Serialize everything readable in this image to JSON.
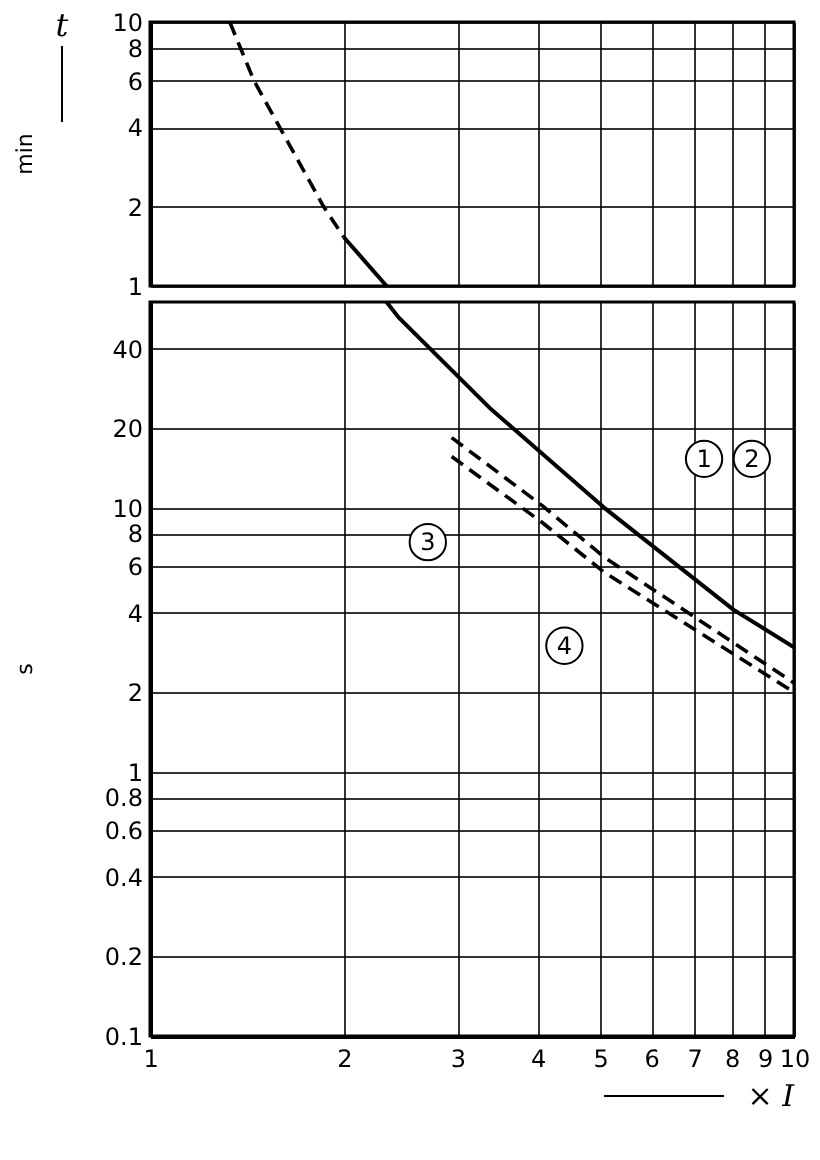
{
  "chart_data": [
    {
      "type": "line",
      "ylabel": "t",
      "log": "xy",
      "grid": true,
      "tick_labels": "y",
      "xlim": [
        1,
        10
      ],
      "xticks": [
        1,
        2,
        3,
        4,
        5,
        6,
        7,
        8,
        9,
        10
      ],
      "ylim": [
        1,
        10
      ],
      "yticks": [
        1,
        2,
        4,
        6,
        8,
        10
      ],
      "series": [
        {
          "color": "#000000",
          "line_style": "dashed",
          "x": [
            1.33,
            1.45,
            1.58,
            1.86,
            2.0
          ],
          "values": [
            10,
            6,
            4.1,
            2,
            1.53
          ]
        },
        {
          "color": "#000000",
          "line_style": "solid",
          "x": [
            2.0,
            2.33
          ],
          "values": [
            1.53,
            1.0
          ]
        }
      ],
      "annotations": [
        "min"
      ]
    },
    {
      "type": "line",
      "xlabel": "× I",
      "log": "xy",
      "grid": true,
      "xlim": [
        1,
        10
      ],
      "xticks": [
        1,
        2,
        3,
        4,
        5,
        6,
        7,
        8,
        9,
        10
      ],
      "ylim": [
        0.1,
        60
      ],
      "yticks": [
        40,
        20,
        10,
        8,
        6,
        4,
        2,
        1,
        0.8,
        0.6,
        0.4,
        0.2,
        0.1
      ],
      "series": [
        {
          "color": "#000000",
          "line_style": "solid",
          "x": [
            2.33,
            2.43,
            3.39,
            5.07,
            8.06,
            10
          ],
          "values": [
            60,
            52.6,
            23.5,
            10,
            4.1,
            2.96
          ]
        },
        {
          "color": "#000000",
          "line_style": "dashed",
          "x": [
            2.94,
            4.06,
            5.07,
            10
          ],
          "values": [
            18.4,
            10.2,
            6.5,
            2.17
          ]
        },
        {
          "color": "#000000",
          "line_style": "dashed",
          "x": [
            2.94,
            4.06,
            5.07,
            10
          ],
          "values": [
            15.6,
            8.8,
            5.7,
            2.0
          ]
        }
      ],
      "annotations": [
        "s",
        {
          "text": "1",
          "x": 7.25,
          "y": 15.3
        },
        {
          "text": "2",
          "x": 8.6,
          "y": 15.3
        },
        {
          "text": "3",
          "x": 2.7,
          "y": 7.4
        },
        {
          "text": "4",
          "x": 4.4,
          "y": 3.0
        }
      ]
    }
  ]
}
